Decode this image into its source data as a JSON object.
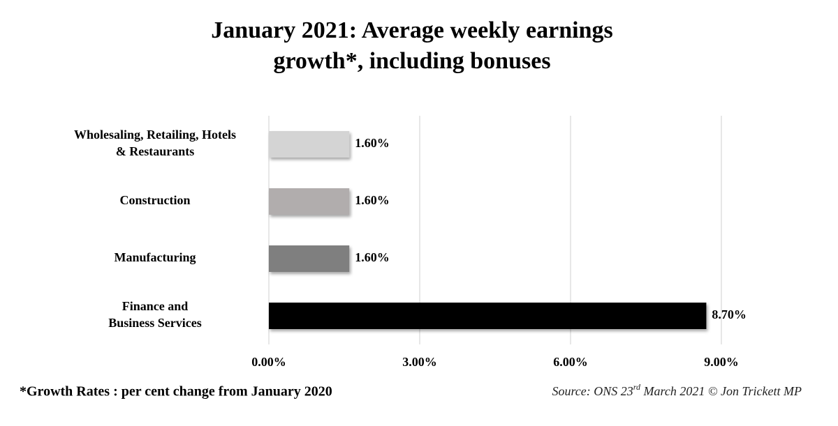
{
  "chart_data": {
    "type": "barh",
    "title": "January 2021: Average weekly earnings\ngrowth*, including bonuses",
    "categories": [
      "Wholesaling, Retailing, Hotels\n& Restaurants",
      "Construction",
      "Manufacturing",
      "Finance and\nBusiness Services"
    ],
    "values": [
      1.6,
      1.6,
      1.6,
      8.7
    ],
    "value_labels": [
      "1.60%",
      "1.60%",
      "1.60%",
      "8.70%"
    ],
    "colors": [
      "#d4d4d4",
      "#b1adad",
      "#7f7f7f",
      "#000000"
    ],
    "xlim": [
      0,
      9
    ],
    "xticks": [
      {
        "value": 0,
        "label": "0.00%"
      },
      {
        "value": 3,
        "label": "3.00%"
      },
      {
        "value": 6,
        "label": "6.00%"
      },
      {
        "value": 9,
        "label": "9.00%"
      }
    ],
    "grid": true,
    "footnote": "*Growth Rates : per cent change from January 2020",
    "source": [
      "Source: ONS 23",
      "rd",
      " March 2021  © Jon Trickett MP"
    ]
  }
}
